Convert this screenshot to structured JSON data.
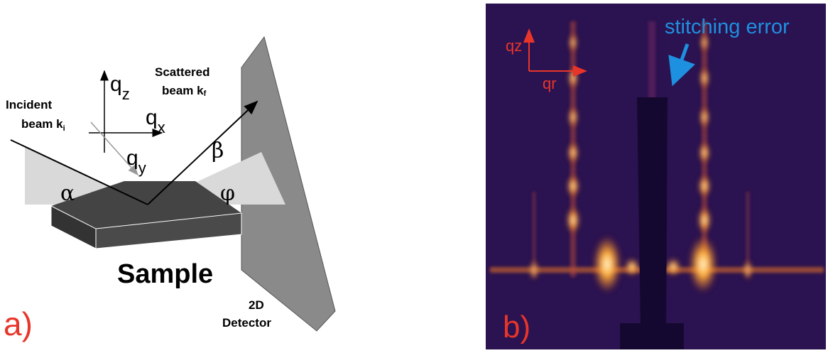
{
  "panel_a": {
    "label": "a)",
    "incident": {
      "line1": "Incident",
      "line2": "beam k",
      "sub": "i"
    },
    "scattered": {
      "line1": "Scattered",
      "line2": "beam k",
      "sub": "f"
    },
    "axes": [
      {
        "symbol": "q",
        "sub": "z"
      },
      {
        "symbol": "q",
        "sub": "x"
      },
      {
        "symbol": "q",
        "sub": "y"
      }
    ],
    "angles": {
      "alpha": "α",
      "beta": "β",
      "phi": "φ"
    },
    "sample": "Sample",
    "detector": {
      "line1": "2D",
      "line2": "Detector"
    }
  },
  "panel_b": {
    "label": "b)",
    "axes": [
      {
        "symbol": "q",
        "sub": "z"
      },
      {
        "symbol": "q",
        "sub": "r"
      }
    ],
    "annotation": "stitching error"
  }
}
